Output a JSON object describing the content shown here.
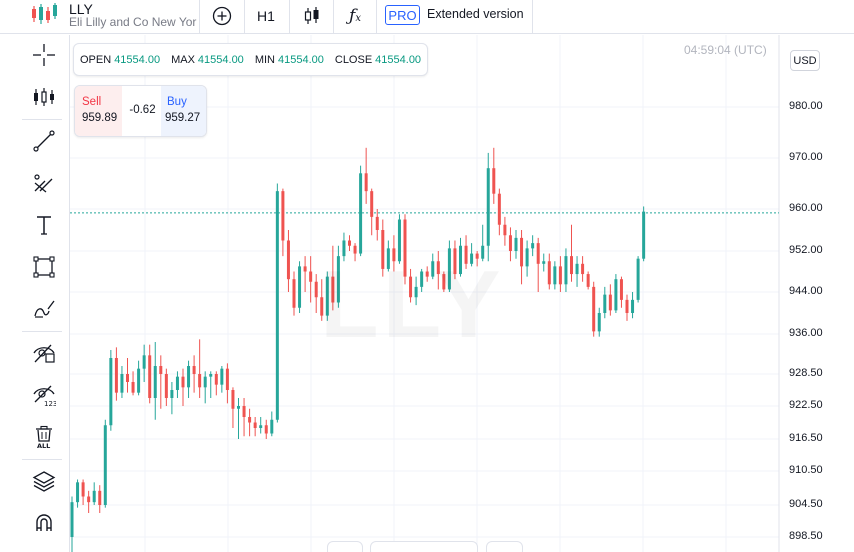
{
  "header": {
    "symbol": "LLY",
    "company": "Eli Lilly and Co New York",
    "interval": "H1",
    "pro_badge": "PRO",
    "extended_label": "Extended version"
  },
  "ohlc": {
    "open_label": "OPEN",
    "open": "41554.00",
    "max_label": "MAX",
    "max": "41554.00",
    "min_label": "MIN",
    "min": "41554.00",
    "close_label": "CLOSE",
    "close": "41554.00"
  },
  "trade": {
    "sell_label": "Sell",
    "sell_price": "959.89",
    "spread": "-0.62",
    "buy_label": "Buy",
    "buy_price": "959.27"
  },
  "clock": "04:59:04 (UTC)",
  "currency": "USD",
  "watermark": "LLY",
  "colors": {
    "up": "#26a69a",
    "down": "#ef5350",
    "accent": "#2962ff",
    "grid": "#f0f3fa"
  },
  "left_tools": [
    "crosshair-icon",
    "indicators-icon",
    "trend-line-icon",
    "fib-retracement-icon",
    "text-icon",
    "rectangle-icon",
    "brush-icon",
    "hide-drawings-icon",
    "hide-indicators-icon",
    "remove-all-icon",
    "layers-icon",
    "magnet-icon"
  ],
  "chart_data": {
    "type": "candlestick",
    "y_ticks": [
      "980.00",
      "970.00",
      "960.00",
      "952.00",
      "944.00",
      "936.00",
      "928.50",
      "922.50",
      "916.50",
      "910.50",
      "904.50",
      "898.50"
    ],
    "current_price": 959.27,
    "candles": [
      [
        898.5,
        905.0,
        895.0,
        906.0
      ],
      [
        905.0,
        908.5,
        904.0,
        909.0
      ],
      [
        908.5,
        906.0,
        904.5,
        909.0
      ],
      [
        906.0,
        905.0,
        903.0,
        907.0
      ],
      [
        905.0,
        907.0,
        904.5,
        908.5
      ],
      [
        907.0,
        904.5,
        903.0,
        908.0
      ],
      [
        904.5,
        919.0,
        904.0,
        920.0
      ],
      [
        919.0,
        931.5,
        918.0,
        933.0
      ],
      [
        931.5,
        925.0,
        923.5,
        933.5
      ],
      [
        925.0,
        928.5,
        924.0,
        930.0
      ],
      [
        928.5,
        927.0,
        925.0,
        931.5
      ],
      [
        927.0,
        925.0,
        924.5,
        929.0
      ],
      [
        925.0,
        929.5,
        924.5,
        931.0
      ],
      [
        929.5,
        932.0,
        927.0,
        934.0
      ],
      [
        932.0,
        924.0,
        923.0,
        934.0
      ],
      [
        924.0,
        930.0,
        920.0,
        934.5
      ],
      [
        930.0,
        928.5,
        922.0,
        932.0
      ],
      [
        928.5,
        924.0,
        922.5,
        929.5
      ],
      [
        924.0,
        925.5,
        921.0,
        927.0
      ],
      [
        925.5,
        928.0,
        924.0,
        929.0
      ],
      [
        928.0,
        926.0,
        922.5,
        929.5
      ],
      [
        926.0,
        930.0,
        924.0,
        931.0
      ],
      [
        930.0,
        928.5,
        925.0,
        932.0
      ],
      [
        928.5,
        926.0,
        924.0,
        935.0
      ],
      [
        926.0,
        928.0,
        923.0,
        929.0
      ],
      [
        928.0,
        928.5,
        924.0,
        929.0
      ],
      [
        928.5,
        926.5,
        924.5,
        929.0
      ],
      [
        926.5,
        929.5,
        925.0,
        930.0
      ],
      [
        929.5,
        925.5,
        923.0,
        930.5
      ],
      [
        925.5,
        922.0,
        918.5,
        926.0
      ],
      [
        922.0,
        922.5,
        916.5,
        924.0
      ],
      [
        922.5,
        920.5,
        917.0,
        924.0
      ],
      [
        920.5,
        919.5,
        917.0,
        922.0
      ],
      [
        919.5,
        918.5,
        917.0,
        920.5
      ],
      [
        918.5,
        919.0,
        917.5,
        920.5
      ],
      [
        919.0,
        917.5,
        916.5,
        920.0
      ],
      [
        917.5,
        920.0,
        917.0,
        921.5
      ],
      [
        920.0,
        963.5,
        919.5,
        965.0
      ],
      [
        963.5,
        954.0,
        951.0,
        964.0
      ],
      [
        954.0,
        946.5,
        944.0,
        956.0
      ],
      [
        946.5,
        941.0,
        939.5,
        948.0
      ],
      [
        941.0,
        949.0,
        940.0,
        950.0
      ],
      [
        949.0,
        948.0,
        944.0,
        951.0
      ],
      [
        948.0,
        946.0,
        942.0,
        951.0
      ],
      [
        946.0,
        943.0,
        940.0,
        947.5
      ],
      [
        943.0,
        939.5,
        938.5,
        946.5
      ],
      [
        939.5,
        947.0,
        938.5,
        948.0
      ],
      [
        947.0,
        942.0,
        940.5,
        953.0
      ],
      [
        942.0,
        951.0,
        941.0,
        953.0
      ],
      [
        951.0,
        954.0,
        950.0,
        955.5
      ],
      [
        954.0,
        953.0,
        952.0,
        955.0
      ],
      [
        953.0,
        951.5,
        950.0,
        953.5
      ],
      [
        951.5,
        967.0,
        951.0,
        968.5
      ],
      [
        967.0,
        963.5,
        961.0,
        972.0
      ],
      [
        963.5,
        958.5,
        955.0,
        964.0
      ],
      [
        958.5,
        956.0,
        954.0,
        960.0
      ],
      [
        956.0,
        948.5,
        947.0,
        958.0
      ],
      [
        948.5,
        952.5,
        948.0,
        954.0
      ],
      [
        952.5,
        950.0,
        948.0,
        955.0
      ],
      [
        950.0,
        958.0,
        949.5,
        959.0
      ],
      [
        958.0,
        947.0,
        945.5,
        959.0
      ],
      [
        947.0,
        943.0,
        942.0,
        948.5
      ],
      [
        943.0,
        945.0,
        941.5,
        947.0
      ],
      [
        945.0,
        948.0,
        944.0,
        948.5
      ],
      [
        948.0,
        947.0,
        946.0,
        949.0
      ],
      [
        947.0,
        950.0,
        946.5,
        951.5
      ],
      [
        950.0,
        947.5,
        944.5,
        952.0
      ],
      [
        947.5,
        944.5,
        944.0,
        948.0
      ],
      [
        944.5,
        952.5,
        944.0,
        954.0
      ],
      [
        952.5,
        947.5,
        946.5,
        954.0
      ],
      [
        947.5,
        953.0,
        947.0,
        954.5
      ],
      [
        953.0,
        949.5,
        948.5,
        955.0
      ],
      [
        949.5,
        951.5,
        949.0,
        953.5
      ],
      [
        951.5,
        950.5,
        949.0,
        952.0
      ],
      [
        950.5,
        953.0,
        950.0,
        957.0
      ],
      [
        953.0,
        968.0,
        950.0,
        971.0
      ],
      [
        968.0,
        963.0,
        961.0,
        972.0
      ],
      [
        963.0,
        957.0,
        955.0,
        964.0
      ],
      [
        957.0,
        955.0,
        953.0,
        958.5
      ],
      [
        955.0,
        952.0,
        950.0,
        956.5
      ],
      [
        952.0,
        954.5,
        950.5,
        956.0
      ],
      [
        954.5,
        949.0,
        945.5,
        956.0
      ],
      [
        949.0,
        952.5,
        947.0,
        954.0
      ],
      [
        952.5,
        953.5,
        951.0,
        955.0
      ],
      [
        953.5,
        949.5,
        944.0,
        954.5
      ],
      [
        949.5,
        950.0,
        948.0,
        951.5
      ],
      [
        950.0,
        945.5,
        944.5,
        951.5
      ],
      [
        945.5,
        949.0,
        944.5,
        950.0
      ],
      [
        949.0,
        945.5,
        944.0,
        951.0
      ],
      [
        945.5,
        951.0,
        944.0,
        952.5
      ],
      [
        951.0,
        947.5,
        946.0,
        957.0
      ],
      [
        947.5,
        949.5,
        945.0,
        951.0
      ],
      [
        949.5,
        947.5,
        946.0,
        951.0
      ],
      [
        947.5,
        945.0,
        944.5,
        948.0
      ],
      [
        945.0,
        936.5,
        935.5,
        946.0
      ],
      [
        936.5,
        940.0,
        935.5,
        941.0
      ],
      [
        940.0,
        943.5,
        939.0,
        945.0
      ],
      [
        943.5,
        940.5,
        939.5,
        945.5
      ],
      [
        940.5,
        946.5,
        940.0,
        947.5
      ],
      [
        946.5,
        942.5,
        941.0,
        947.0
      ],
      [
        942.5,
        940.0,
        938.5,
        943.5
      ],
      [
        940.0,
        942.5,
        939.0,
        944.0
      ],
      [
        942.5,
        950.5,
        942.0,
        951.0
      ],
      [
        950.5,
        959.5,
        950.0,
        960.5
      ]
    ]
  }
}
